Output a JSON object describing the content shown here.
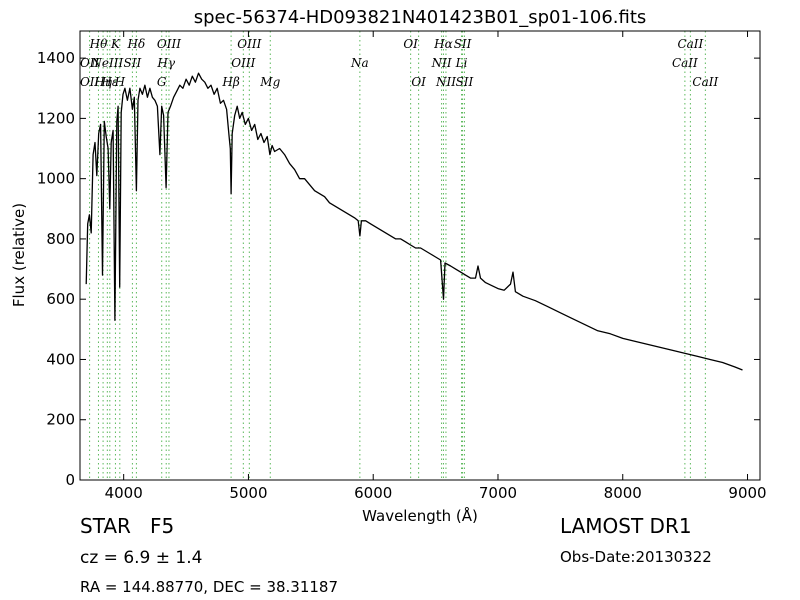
{
  "chart_data": {
    "type": "line",
    "title": "spec-56374-HD093821N401423B01_sp01-106.fits",
    "xlabel": "Wavelength (Å)",
    "ylabel": "Flux (relative)",
    "xlim": [
      3650,
      9100
    ],
    "ylim": [
      0,
      1490
    ],
    "xticks": [
      4000,
      5000,
      6000,
      7000,
      8000,
      9000
    ],
    "yticks": [
      0,
      200,
      400,
      600,
      800,
      1000,
      1200,
      1400
    ],
    "grid": false,
    "series": [
      {
        "color": "#000000",
        "points": [
          [
            3700,
            650
          ],
          [
            3712,
            850
          ],
          [
            3725,
            880
          ],
          [
            3740,
            820
          ],
          [
            3755,
            1080
          ],
          [
            3770,
            1120
          ],
          [
            3785,
            1010
          ],
          [
            3800,
            1150
          ],
          [
            3815,
            1180
          ],
          [
            3830,
            680
          ],
          [
            3845,
            1190
          ],
          [
            3860,
            1140
          ],
          [
            3875,
            1100
          ],
          [
            3889,
            900
          ],
          [
            3900,
            1120
          ],
          [
            3915,
            1160
          ],
          [
            3930,
            530
          ],
          [
            3945,
            1190
          ],
          [
            3955,
            1240
          ],
          [
            3968,
            640
          ],
          [
            3980,
            1220
          ],
          [
            3995,
            1280
          ],
          [
            4010,
            1300
          ],
          [
            4030,
            1260
          ],
          [
            4050,
            1300
          ],
          [
            4070,
            1230
          ],
          [
            4085,
            1270
          ],
          [
            4102,
            960
          ],
          [
            4115,
            1260
          ],
          [
            4130,
            1300
          ],
          [
            4150,
            1280
          ],
          [
            4170,
            1310
          ],
          [
            4190,
            1270
          ],
          [
            4210,
            1300
          ],
          [
            4230,
            1270
          ],
          [
            4250,
            1260
          ],
          [
            4270,
            1240
          ],
          [
            4290,
            1080
          ],
          [
            4305,
            1240
          ],
          [
            4320,
            1210
          ],
          [
            4340,
            970
          ],
          [
            4355,
            1220
          ],
          [
            4375,
            1240
          ],
          [
            4400,
            1270
          ],
          [
            4425,
            1290
          ],
          [
            4450,
            1310
          ],
          [
            4475,
            1300
          ],
          [
            4500,
            1330
          ],
          [
            4525,
            1310
          ],
          [
            4550,
            1340
          ],
          [
            4575,
            1320
          ],
          [
            4600,
            1350
          ],
          [
            4625,
            1330
          ],
          [
            4650,
            1320
          ],
          [
            4675,
            1300
          ],
          [
            4700,
            1310
          ],
          [
            4725,
            1280
          ],
          [
            4750,
            1300
          ],
          [
            4775,
            1250
          ],
          [
            4800,
            1260
          ],
          [
            4825,
            1230
          ],
          [
            4845,
            1140
          ],
          [
            4855,
            1100
          ],
          [
            4861,
            950
          ],
          [
            4870,
            1150
          ],
          [
            4890,
            1210
          ],
          [
            4910,
            1240
          ],
          [
            4930,
            1200
          ],
          [
            4950,
            1220
          ],
          [
            4975,
            1180
          ],
          [
            5000,
            1200
          ],
          [
            5025,
            1160
          ],
          [
            5050,
            1180
          ],
          [
            5075,
            1130
          ],
          [
            5100,
            1150
          ],
          [
            5125,
            1120
          ],
          [
            5150,
            1140
          ],
          [
            5172,
            1080
          ],
          [
            5190,
            1110
          ],
          [
            5210,
            1090
          ],
          [
            5250,
            1100
          ],
          [
            5290,
            1080
          ],
          [
            5330,
            1050
          ],
          [
            5370,
            1030
          ],
          [
            5410,
            1000
          ],
          [
            5450,
            1000
          ],
          [
            5490,
            980
          ],
          [
            5530,
            960
          ],
          [
            5570,
            950
          ],
          [
            5610,
            940
          ],
          [
            5650,
            920
          ],
          [
            5690,
            910
          ],
          [
            5730,
            900
          ],
          [
            5770,
            890
          ],
          [
            5810,
            880
          ],
          [
            5850,
            870
          ],
          [
            5880,
            860
          ],
          [
            5893,
            810
          ],
          [
            5905,
            860
          ],
          [
            5940,
            860
          ],
          [
            5980,
            850
          ],
          [
            6020,
            840
          ],
          [
            6060,
            830
          ],
          [
            6100,
            820
          ],
          [
            6140,
            810
          ],
          [
            6180,
            800
          ],
          [
            6220,
            800
          ],
          [
            6260,
            790
          ],
          [
            6300,
            780
          ],
          [
            6340,
            770
          ],
          [
            6380,
            770
          ],
          [
            6420,
            760
          ],
          [
            6460,
            750
          ],
          [
            6500,
            740
          ],
          [
            6540,
            730
          ],
          [
            6563,
            600
          ],
          [
            6575,
            720
          ],
          [
            6620,
            710
          ],
          [
            6660,
            700
          ],
          [
            6700,
            690
          ],
          [
            6740,
            680
          ],
          [
            6780,
            670
          ],
          [
            6820,
            670
          ],
          [
            6840,
            710
          ],
          [
            6860,
            670
          ],
          [
            6900,
            655
          ],
          [
            6950,
            645
          ],
          [
            7000,
            635
          ],
          [
            7050,
            630
          ],
          [
            7100,
            650
          ],
          [
            7120,
            690
          ],
          [
            7140,
            625
          ],
          [
            7200,
            610
          ],
          [
            7300,
            595
          ],
          [
            7400,
            575
          ],
          [
            7500,
            555
          ],
          [
            7600,
            535
          ],
          [
            7700,
            515
          ],
          [
            7800,
            495
          ],
          [
            7900,
            485
          ],
          [
            8000,
            470
          ],
          [
            8100,
            460
          ],
          [
            8200,
            450
          ],
          [
            8300,
            440
          ],
          [
            8400,
            430
          ],
          [
            8500,
            420
          ],
          [
            8600,
            410
          ],
          [
            8700,
            400
          ],
          [
            8800,
            390
          ],
          [
            8900,
            375
          ],
          [
            8960,
            365
          ]
        ]
      }
    ],
    "lines": [
      {
        "label": "OΙΙ",
        "x": 3727,
        "row": 2
      },
      {
        "label": "Hθ",
        "x": 3798,
        "row": 0
      },
      {
        "label": "OΙΙ",
        "x": 3727,
        "row": 1
      },
      {
        "label": "Hη",
        "x": 3835,
        "row": 2
      },
      {
        "label": "Hε",
        "x": 3889,
        "row": 2
      },
      {
        "label": "NeIII",
        "x": 3869,
        "row": 1
      },
      {
        "label": "K",
        "x": 3934,
        "row": 0
      },
      {
        "label": "SII",
        "x": 4070,
        "row": 1
      },
      {
        "label": "H",
        "x": 3969,
        "row": 2
      },
      {
        "label": "Hδ",
        "x": 4102,
        "row": 0
      },
      {
        "label": "OIII",
        "x": 4363,
        "row": 0
      },
      {
        "label": "Hγ",
        "x": 4341,
        "row": 1
      },
      {
        "label": "G",
        "x": 4305,
        "row": 2
      },
      {
        "label": "OIII",
        "x": 5007,
        "row": 0
      },
      {
        "label": "OIII",
        "x": 4959,
        "row": 1
      },
      {
        "label": "Hβ",
        "x": 4861,
        "row": 2
      },
      {
        "label": "Mg",
        "x": 5175,
        "row": 2
      },
      {
        "label": "Na",
        "x": 5893,
        "row": 1
      },
      {
        "label": "OI",
        "x": 6300,
        "row": 0
      },
      {
        "label": "OI",
        "x": 6364,
        "row": 2
      },
      {
        "label": "Hα",
        "x": 6563,
        "row": 0
      },
      {
        "label": "SII",
        "x": 6716,
        "row": 0
      },
      {
        "label": "NII",
        "x": 6548,
        "row": 1
      },
      {
        "label": "Li",
        "x": 6708,
        "row": 1
      },
      {
        "label": "NII",
        "x": 6583,
        "row": 2
      },
      {
        "label": "SII",
        "x": 6731,
        "row": 2
      },
      {
        "label": "CaII",
        "x": 8542,
        "row": 0
      },
      {
        "label": "CaII",
        "x": 8498,
        "row": 1
      },
      {
        "label": "CaII",
        "x": 8662,
        "row": 2
      }
    ]
  },
  "info": {
    "class_label": "STAR",
    "subclass": "F5",
    "cz": "cz = 6.9 ± 1.4",
    "coords": "RA = 144.88770, DEC = 38.31187",
    "survey": "LAMOST DR1",
    "obs_date": "Obs-Date:20130322"
  }
}
